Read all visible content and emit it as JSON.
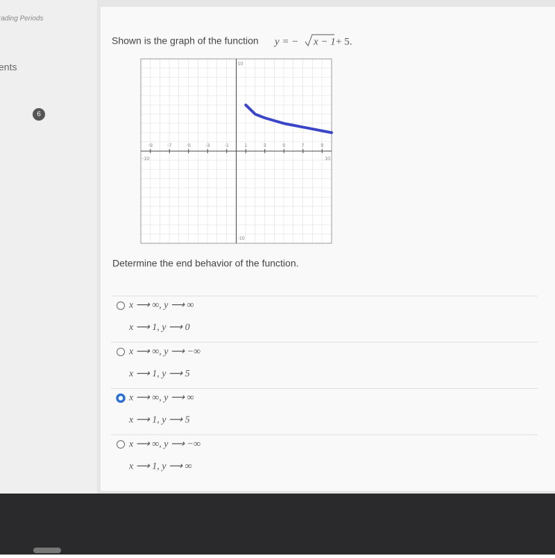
{
  "sidebar": {
    "heading": "rading Periods",
    "nav_item": "ents",
    "badge": "6"
  },
  "question": {
    "prompt": "Shown is the graph of the function",
    "equation": {
      "lhs": "y = −",
      "radicand": "x − 1",
      "rest": "+ 5."
    },
    "instruction": "Determine the end behavior of the function."
  },
  "graph": {
    "xlim": [
      -10,
      10
    ],
    "ylim": [
      -10,
      10
    ],
    "xticks": [
      -9,
      -7,
      -5,
      -3,
      -1,
      1,
      3,
      5,
      7,
      9
    ],
    "edge_labels": {
      "x_min": -10,
      "x_max": 10,
      "y_max": 10,
      "y_min": -10
    },
    "curve": {
      "color": "#3a45c8",
      "x": [
        1,
        2,
        3,
        4,
        5,
        6,
        7,
        8,
        9,
        10
      ],
      "y": [
        5,
        4,
        3.6,
        3.3,
        3,
        2.8,
        2.6,
        2.4,
        2.2,
        2
      ]
    }
  },
  "options": [
    {
      "line1": "x ⟶ ∞, y ⟶ ∞",
      "line2": "x ⟶ 1, y ⟶ 0",
      "selected": false
    },
    {
      "line1": "x ⟶ ∞, y ⟶ −∞",
      "line2": "x ⟶ 1, y ⟶ 5",
      "selected": false
    },
    {
      "line1": "x ⟶ ∞, y ⟶ ∞",
      "line2": "x ⟶ 1, y ⟶ 5",
      "selected": true
    },
    {
      "line1": "x ⟶ ∞, y ⟶ −∞",
      "line2": "x ⟶ 1, y ⟶ ∞",
      "selected": false
    }
  ]
}
